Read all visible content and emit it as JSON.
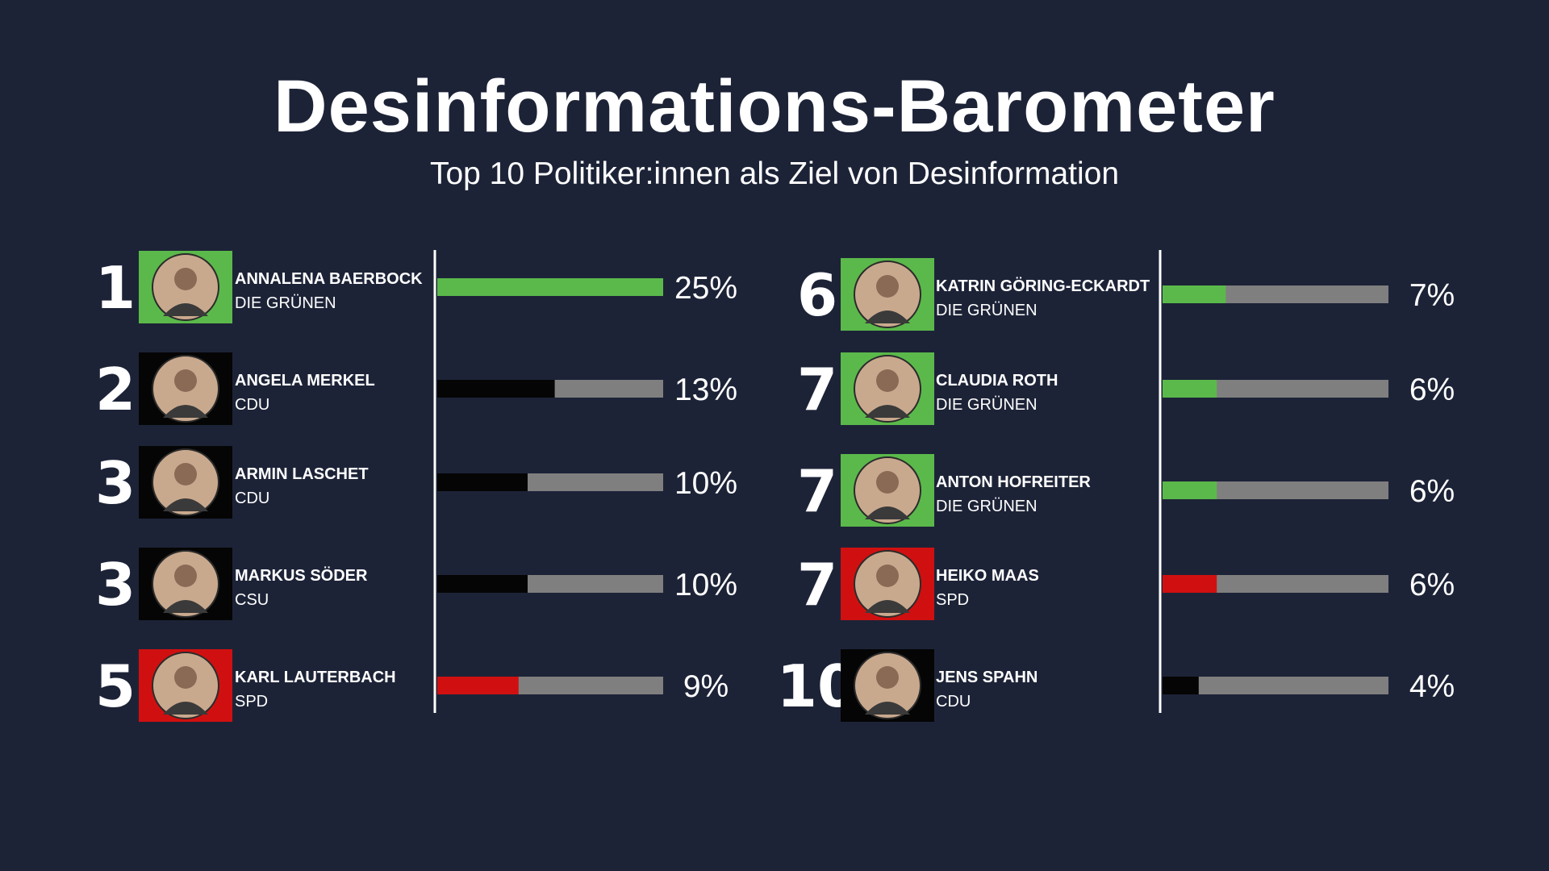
{
  "title": "Desinformations-Barometer",
  "subtitle": "Top 10 Politiker:innen als Ziel von Desinformation",
  "colors": {
    "background": "#1d2337",
    "bar_track": "#7f7f7f",
    "divider": "#ffffff",
    "DIE GRÜNEN": "#5ab94a",
    "CDU": "#050505",
    "CSU": "#050505",
    "SPD": "#d01010"
  },
  "chart_data": {
    "type": "bar",
    "title": "Desinformations-Barometer",
    "subtitle": "Top 10 Politiker:innen als Ziel von Desinformation",
    "xlim": [
      0,
      25
    ],
    "unit": "%",
    "grid": false,
    "rows": [
      {
        "rank": "1",
        "name": "ANNALENA BAERBOCK",
        "party": "DIE GRÜNEN",
        "value": 25,
        "label": "25%"
      },
      {
        "rank": "2",
        "name": "ANGELA MERKEL",
        "party": "CDU",
        "value": 13,
        "label": "13%"
      },
      {
        "rank": "3",
        "name": "ARMIN LASCHET",
        "party": "CDU",
        "value": 10,
        "label": "10%"
      },
      {
        "rank": "3",
        "name": "MARKUS SÖDER",
        "party": "CSU",
        "value": 10,
        "label": "10%"
      },
      {
        "rank": "5",
        "name": "KARL LAUTERBACH",
        "party": "SPD",
        "value": 9,
        "label": "9%"
      },
      {
        "rank": "6",
        "name": "KATRIN GÖRING-ECKARDT",
        "party": "DIE GRÜNEN",
        "value": 7,
        "label": "7%"
      },
      {
        "rank": "7",
        "name": "CLAUDIA ROTH",
        "party": "DIE GRÜNEN",
        "value": 6,
        "label": "6%"
      },
      {
        "rank": "7",
        "name": "ANTON HOFREITER",
        "party": "DIE GRÜNEN",
        "value": 6,
        "label": "6%"
      },
      {
        "rank": "7",
        "name": "HEIKO MAAS",
        "party": "SPD",
        "value": 6,
        "label": "6%"
      },
      {
        "rank": "10",
        "name": "JENS SPAHN",
        "party": "CDU",
        "value": 4,
        "label": "4%"
      }
    ]
  }
}
